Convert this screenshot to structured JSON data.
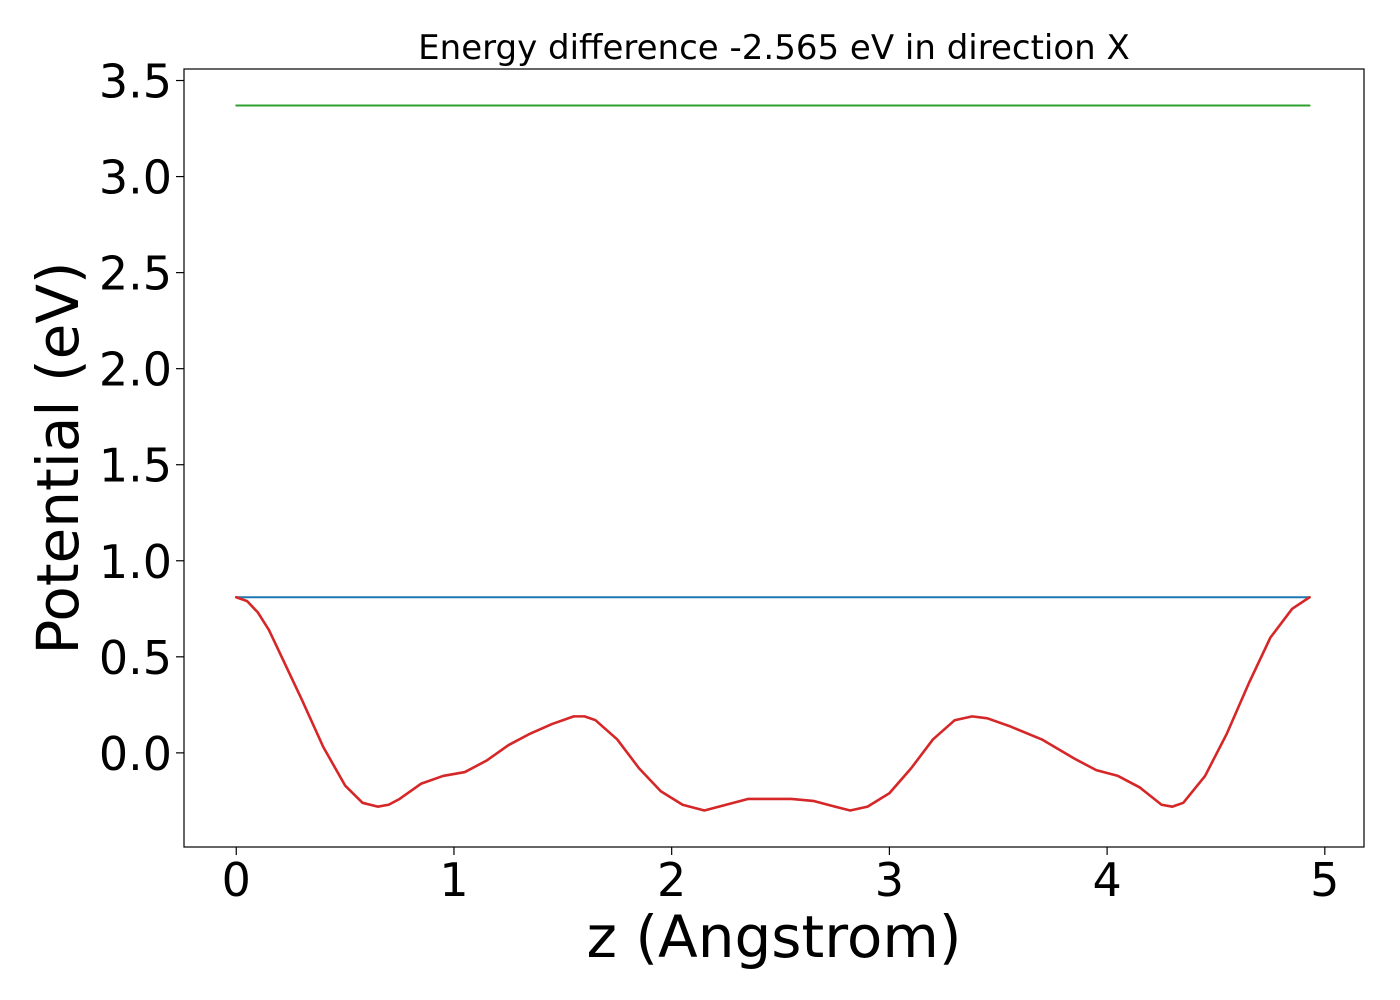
{
  "chart_data": {
    "type": "line",
    "title": "Energy difference -2.565 eV in direction X",
    "xlabel": "z (Angstrom)",
    "ylabel": "Potential (eV)",
    "xlim": [
      -0.24,
      5.18
    ],
    "ylim": [
      -0.49,
      3.56
    ],
    "xticks": [
      0,
      1,
      2,
      3,
      4,
      5
    ],
    "xtick_labels": [
      "0",
      "1",
      "2",
      "3",
      "4",
      "5"
    ],
    "yticks": [
      0.0,
      0.5,
      1.0,
      1.5,
      2.0,
      2.5,
      3.0,
      3.5
    ],
    "ytick_labels": [
      "0.0",
      "0.5",
      "1.0",
      "1.5",
      "2.0",
      "2.5",
      "3.0",
      "3.5"
    ],
    "grid": false,
    "series": [
      {
        "color": "#2ca02c",
        "x": [
          0.0,
          4.93
        ],
        "y": [
          3.37,
          3.37
        ]
      },
      {
        "color": "#1f77b4",
        "x": [
          0.0,
          4.93
        ],
        "y": [
          0.81,
          0.81
        ]
      },
      {
        "color": "#d62728",
        "x": [
          0.0,
          0.05,
          0.1,
          0.15,
          0.2,
          0.3,
          0.4,
          0.5,
          0.58,
          0.65,
          0.7,
          0.75,
          0.85,
          0.95,
          1.05,
          1.15,
          1.25,
          1.35,
          1.45,
          1.55,
          1.6,
          1.65,
          1.75,
          1.85,
          1.95,
          2.05,
          2.15,
          2.25,
          2.35,
          2.45,
          2.55,
          2.65,
          2.75,
          2.82,
          2.9,
          3.0,
          3.1,
          3.2,
          3.3,
          3.38,
          3.45,
          3.55,
          3.7,
          3.85,
          3.95,
          4.05,
          4.15,
          4.25,
          4.3,
          4.35,
          4.45,
          4.55,
          4.65,
          4.75,
          4.85,
          4.93
        ],
        "y": [
          0.81,
          0.79,
          0.73,
          0.64,
          0.52,
          0.28,
          0.03,
          -0.17,
          -0.26,
          -0.28,
          -0.27,
          -0.24,
          -0.16,
          -0.12,
          -0.1,
          -0.04,
          0.04,
          0.1,
          0.15,
          0.19,
          0.19,
          0.17,
          0.07,
          -0.08,
          -0.2,
          -0.27,
          -0.3,
          -0.27,
          -0.24,
          -0.24,
          -0.24,
          -0.25,
          -0.28,
          -0.3,
          -0.28,
          -0.21,
          -0.08,
          0.07,
          0.17,
          0.19,
          0.18,
          0.14,
          0.07,
          -0.03,
          -0.09,
          -0.12,
          -0.18,
          -0.27,
          -0.28,
          -0.26,
          -0.12,
          0.1,
          0.36,
          0.6,
          0.75,
          0.81
        ]
      }
    ]
  }
}
